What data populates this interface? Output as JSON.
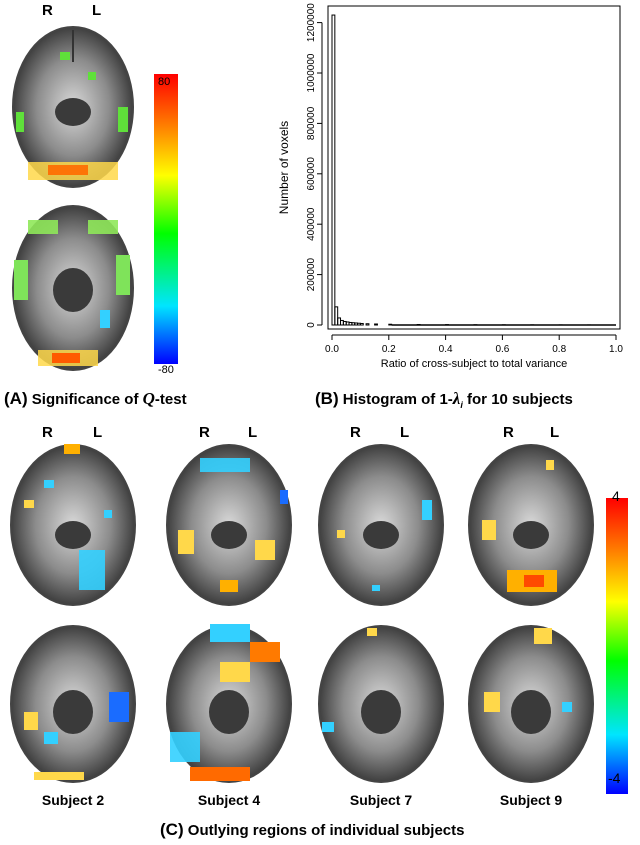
{
  "panel_a": {
    "side_right": "R",
    "side_left": "L",
    "colorbar_max": "80",
    "colorbar_min": "-80",
    "caption_prefix": "(A)",
    "caption_text": "Significance of ",
    "caption_symbol": "Q",
    "caption_suffix": "-test"
  },
  "panel_b": {
    "caption_prefix": "(B)",
    "caption_text": "Histogram of 1-",
    "caption_symbol": "λ",
    "caption_sub": "i",
    "caption_suffix": " for 10 subjects"
  },
  "panel_c": {
    "side_right": "R",
    "side_left": "L",
    "colorbar_max": "4",
    "colorbar_min": "-4",
    "subjects": [
      "Subject 2",
      "Subject 4",
      "Subject 7",
      "Subject 9"
    ],
    "caption_prefix": "(C)",
    "caption_text": "Outlying regions of individual subjects"
  },
  "colors": {
    "brain_dark": "#2b2b2b",
    "brain_mid": "#8c8c8c",
    "brain_light": "#d9d9d9",
    "colorbar": [
      "#0000ff",
      "#00e5ff",
      "#00ff00",
      "#ffff00",
      "#ff8000",
      "#ff0000"
    ]
  },
  "chart_data": {
    "type": "bar",
    "title": "",
    "xlabel": "Ratio of cross-subject to total variance",
    "ylabel": "Number of voxels",
    "xlim": [
      0,
      1
    ],
    "ylim": [
      0,
      1250000
    ],
    "x_ticks": [
      "0.0",
      "0.2",
      "0.4",
      "0.6",
      "0.8",
      "1.0"
    ],
    "x_tick_values": [
      0,
      0.2,
      0.4,
      0.6,
      0.8,
      1.0
    ],
    "y_ticks": [
      "0",
      "200000",
      "400000",
      "600000",
      "800000",
      "1000000",
      "1200000"
    ],
    "y_tick_values": [
      0,
      200000,
      400000,
      600000,
      800000,
      1000000,
      1200000
    ],
    "bin_width": 0.01,
    "bin_starts": [
      0.0,
      0.01,
      0.02,
      0.03,
      0.04,
      0.05,
      0.06,
      0.07,
      0.08,
      0.09,
      0.1,
      0.12,
      0.15,
      0.2,
      0.3,
      0.4,
      0.5,
      0.6,
      0.7,
      0.8,
      0.9
    ],
    "values": [
      1230000,
      72000,
      28000,
      18000,
      14000,
      12000,
      10000,
      9000,
      8000,
      7000,
      6000,
      5000,
      4000,
      3000,
      2000,
      1500,
      1000,
      800,
      600,
      400,
      300
    ]
  }
}
